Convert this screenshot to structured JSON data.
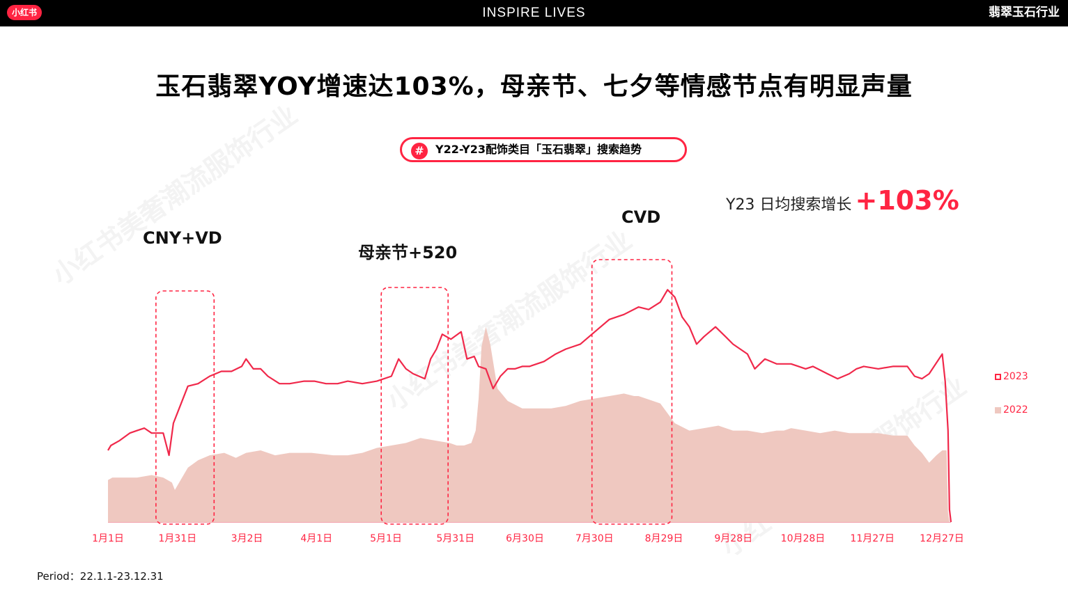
{
  "header": {
    "logo": "小红书",
    "brand": "INSPIRE LIVES",
    "industry": "翡翠玉石行业"
  },
  "headline": "玉石翡翠YOY增速达103%，母亲节、七夕等情感节点有明显声量",
  "subtitle_pill": {
    "icon": "hash-icon",
    "text": "Y22-Y23配饰类目「玉石翡翠」搜索趋势"
  },
  "kpi": {
    "label": "Y23 日均搜索增长",
    "value": "+103%"
  },
  "period": "Period：22.1.1-23.12.31",
  "watermark": "小红书美奢潮流服饰行业",
  "colors": {
    "accent": "#ff2442",
    "line_2023": "#f0284a",
    "area_2022": "#efc8c0",
    "header_bg": "#000000"
  },
  "chart_data": {
    "type": "line",
    "title": "Y22-Y23配饰类目「玉石翡翠」搜索趋势",
    "xlabel": "",
    "ylabel": "",
    "x_tick_labels": [
      "1月1日",
      "1月31日",
      "3月2日",
      "4月1日",
      "5月1日",
      "5月31日",
      "6月30日",
      "7月30日",
      "8月29日",
      "9月28日",
      "10月28日",
      "11月27日",
      "12月27日"
    ],
    "ylim": [
      0,
      100
    ],
    "grid": false,
    "legend_position": "right",
    "series": [
      {
        "name": "2023",
        "style": "line",
        "points": [
          [
            0,
            29
          ],
          [
            2,
            31
          ],
          [
            8,
            33
          ],
          [
            15,
            36
          ],
          [
            20,
            37
          ],
          [
            25,
            38
          ],
          [
            30,
            36
          ],
          [
            38,
            36
          ],
          [
            42,
            27
          ],
          [
            45,
            40
          ],
          [
            55,
            55
          ],
          [
            62,
            56
          ],
          [
            70,
            59
          ],
          [
            78,
            61
          ],
          [
            85,
            61
          ],
          [
            92,
            63
          ],
          [
            95,
            66
          ],
          [
            100,
            62
          ],
          [
            105,
            62
          ],
          [
            110,
            59
          ],
          [
            118,
            56
          ],
          [
            125,
            56
          ],
          [
            135,
            57
          ],
          [
            142,
            57
          ],
          [
            150,
            56
          ],
          [
            158,
            56
          ],
          [
            165,
            57
          ],
          [
            175,
            56
          ],
          [
            185,
            57
          ],
          [
            195,
            59
          ],
          [
            200,
            66
          ],
          [
            205,
            62
          ],
          [
            210,
            60
          ],
          [
            218,
            58
          ],
          [
            222,
            66
          ],
          [
            226,
            70
          ],
          [
            230,
            76
          ],
          [
            236,
            74
          ],
          [
            243,
            77
          ],
          [
            247,
            66
          ],
          [
            252,
            67
          ],
          [
            255,
            63
          ],
          [
            260,
            62
          ],
          [
            265,
            54
          ],
          [
            270,
            59
          ],
          [
            275,
            62
          ],
          [
            280,
            62
          ],
          [
            285,
            63
          ],
          [
            290,
            63
          ],
          [
            300,
            65
          ],
          [
            308,
            68
          ],
          [
            315,
            70
          ],
          [
            325,
            72
          ],
          [
            335,
            77
          ],
          [
            345,
            82
          ],
          [
            355,
            84
          ],
          [
            365,
            87
          ],
          [
            372,
            86
          ],
          [
            380,
            89
          ],
          [
            385,
            94
          ],
          [
            390,
            91
          ],
          [
            395,
            83
          ],
          [
            400,
            79
          ],
          [
            405,
            72
          ],
          [
            410,
            75
          ],
          [
            418,
            79
          ],
          [
            425,
            75
          ],
          [
            430,
            72
          ],
          [
            440,
            68
          ],
          [
            445,
            62
          ],
          [
            452,
            66
          ],
          [
            460,
            64
          ],
          [
            470,
            64
          ],
          [
            480,
            62
          ],
          [
            485,
            63
          ],
          [
            495,
            60
          ],
          [
            502,
            58
          ],
          [
            510,
            60
          ],
          [
            515,
            62
          ],
          [
            520,
            63
          ],
          [
            530,
            62
          ],
          [
            540,
            63
          ],
          [
            550,
            63
          ],
          [
            555,
            59
          ],
          [
            560,
            58
          ],
          [
            565,
            60
          ],
          [
            574,
            68
          ],
          [
            576,
            57
          ],
          [
            578,
            37
          ],
          [
            579,
            5
          ],
          [
            580,
            0
          ]
        ]
      },
      {
        "name": "2022",
        "style": "area",
        "points": [
          [
            0,
            17
          ],
          [
            3,
            18
          ],
          [
            10,
            18
          ],
          [
            20,
            18
          ],
          [
            30,
            19
          ],
          [
            38,
            18
          ],
          [
            44,
            16
          ],
          [
            46,
            13
          ],
          [
            50,
            17
          ],
          [
            55,
            22
          ],
          [
            62,
            25
          ],
          [
            70,
            27
          ],
          [
            80,
            28
          ],
          [
            88,
            26
          ],
          [
            95,
            28
          ],
          [
            105,
            29
          ],
          [
            115,
            27
          ],
          [
            125,
            28
          ],
          [
            140,
            28
          ],
          [
            155,
            27
          ],
          [
            165,
            27
          ],
          [
            175,
            28
          ],
          [
            185,
            30
          ],
          [
            195,
            31
          ],
          [
            205,
            32
          ],
          [
            215,
            34
          ],
          [
            225,
            33
          ],
          [
            235,
            32
          ],
          [
            240,
            31
          ],
          [
            245,
            31
          ],
          [
            250,
            32
          ],
          [
            253,
            37
          ],
          [
            255,
            50
          ],
          [
            257,
            71
          ],
          [
            260,
            79
          ],
          [
            263,
            72
          ],
          [
            268,
            54
          ],
          [
            275,
            49
          ],
          [
            285,
            46
          ],
          [
            295,
            46
          ],
          [
            305,
            46
          ],
          [
            315,
            47
          ],
          [
            325,
            49
          ],
          [
            335,
            50
          ],
          [
            345,
            51
          ],
          [
            355,
            52
          ],
          [
            362,
            51
          ],
          [
            365,
            51
          ],
          [
            370,
            50
          ],
          [
            380,
            48
          ],
          [
            385,
            44
          ],
          [
            390,
            40
          ],
          [
            400,
            37
          ],
          [
            410,
            38
          ],
          [
            420,
            39
          ],
          [
            430,
            37
          ],
          [
            440,
            37
          ],
          [
            450,
            36
          ],
          [
            460,
            37
          ],
          [
            465,
            37
          ],
          [
            470,
            38
          ],
          [
            480,
            37
          ],
          [
            490,
            36
          ],
          [
            500,
            37
          ],
          [
            510,
            36
          ],
          [
            520,
            36
          ],
          [
            530,
            36
          ],
          [
            540,
            35
          ],
          [
            550,
            35
          ],
          [
            555,
            31
          ],
          [
            560,
            28
          ],
          [
            565,
            24
          ],
          [
            570,
            27
          ],
          [
            574,
            29
          ],
          [
            576,
            29
          ],
          [
            577,
            29
          ],
          [
            578,
            4
          ],
          [
            579,
            0
          ]
        ]
      }
    ],
    "annotations": [
      {
        "label": "CNY+VD",
        "x_range": [
          33,
          73
        ]
      },
      {
        "label": "母亲节+520",
        "x_range": [
          188,
          234
        ]
      },
      {
        "label": "CVD",
        "x_range": [
          333,
          388
        ]
      }
    ]
  }
}
